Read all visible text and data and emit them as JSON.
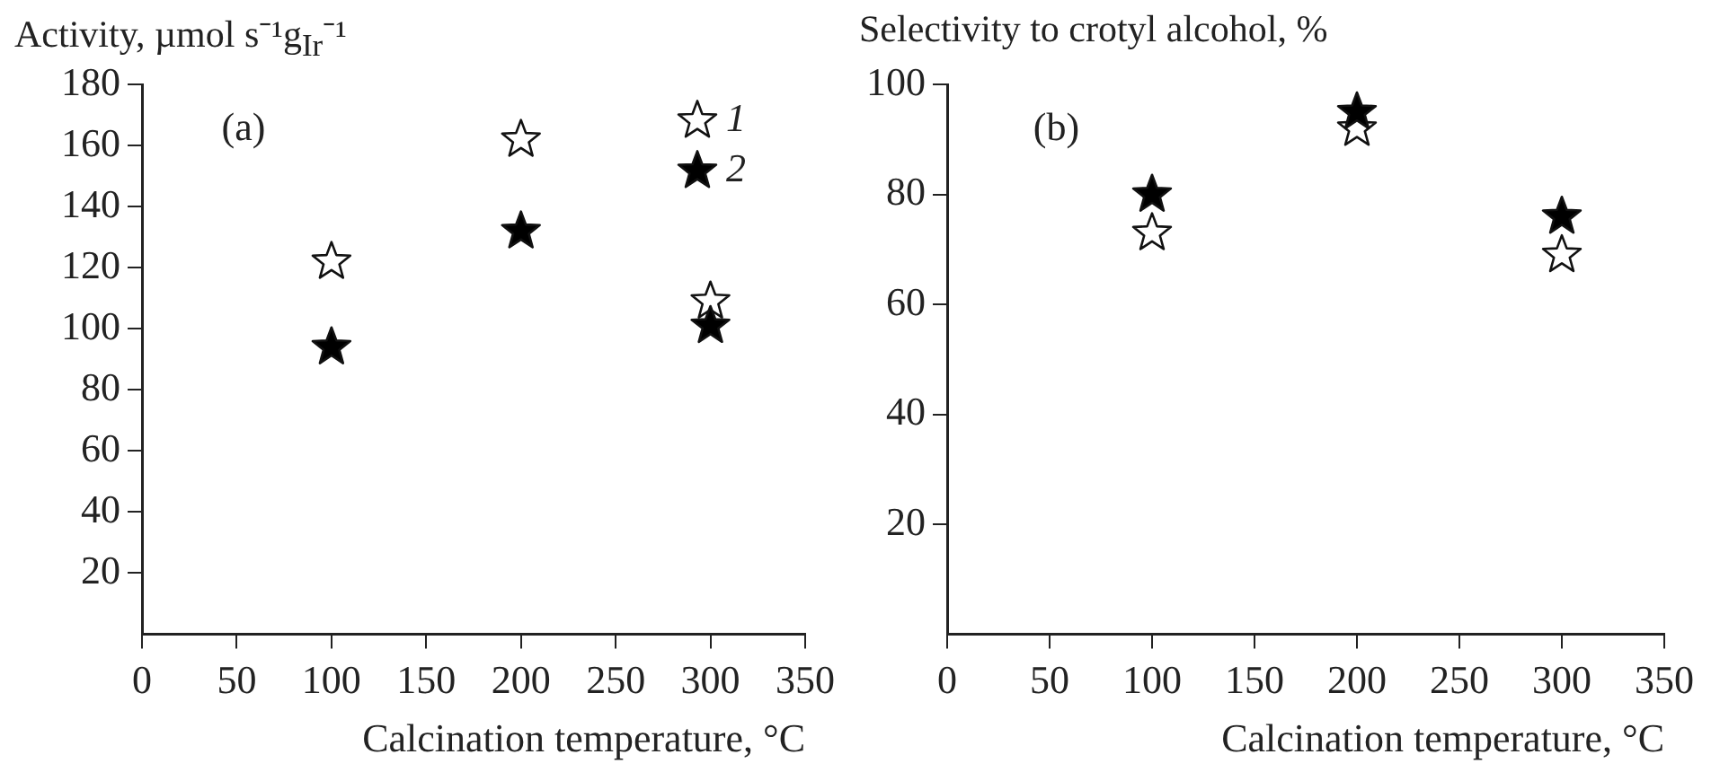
{
  "chart_data": [
    {
      "type": "scatter",
      "ylabel": "Activity, µmol s⁻¹g$_{Ir}$⁻¹",
      "xlabel": "Calcination temperature, °C",
      "annotations": [
        "(a)"
      ],
      "xlim": [
        0,
        350
      ],
      "xticks": [
        0,
        50,
        100,
        150,
        200,
        250,
        300,
        350
      ],
      "ylim": [
        0,
        180
      ],
      "yticks": [
        20,
        40,
        60,
        80,
        100,
        120,
        140,
        160,
        180
      ],
      "marker": "star",
      "grid": false,
      "legend": "top right",
      "series": [
        {
          "name": "1",
          "color": "#ffffff",
          "x": [
            100,
            200,
            300
          ],
          "values": [
            122,
            162,
            109
          ]
        },
        {
          "name": "2",
          "color": "#000000",
          "x": [
            100,
            200,
            300
          ],
          "values": [
            94,
            132,
            101
          ]
        }
      ]
    },
    {
      "type": "scatter",
      "ylabel": "Selectivity to crotyl alcohol, %",
      "xlabel": "Calcination temperature, °C",
      "annotations": [
        "(b)"
      ],
      "xlim": [
        0,
        350
      ],
      "xticks": [
        0,
        50,
        100,
        150,
        200,
        250,
        300,
        350
      ],
      "ylim": [
        0,
        100
      ],
      "yticks": [
        20,
        40,
        60,
        80,
        100
      ],
      "marker": "star",
      "grid": false,
      "legend": false,
      "series": [
        {
          "color": "#ffffff",
          "x": [
            100,
            200,
            300
          ],
          "values": [
            73,
            92,
            69
          ]
        },
        {
          "color": "#000000",
          "x": [
            100,
            200,
            300
          ],
          "values": [
            80,
            95,
            76
          ]
        }
      ]
    }
  ]
}
